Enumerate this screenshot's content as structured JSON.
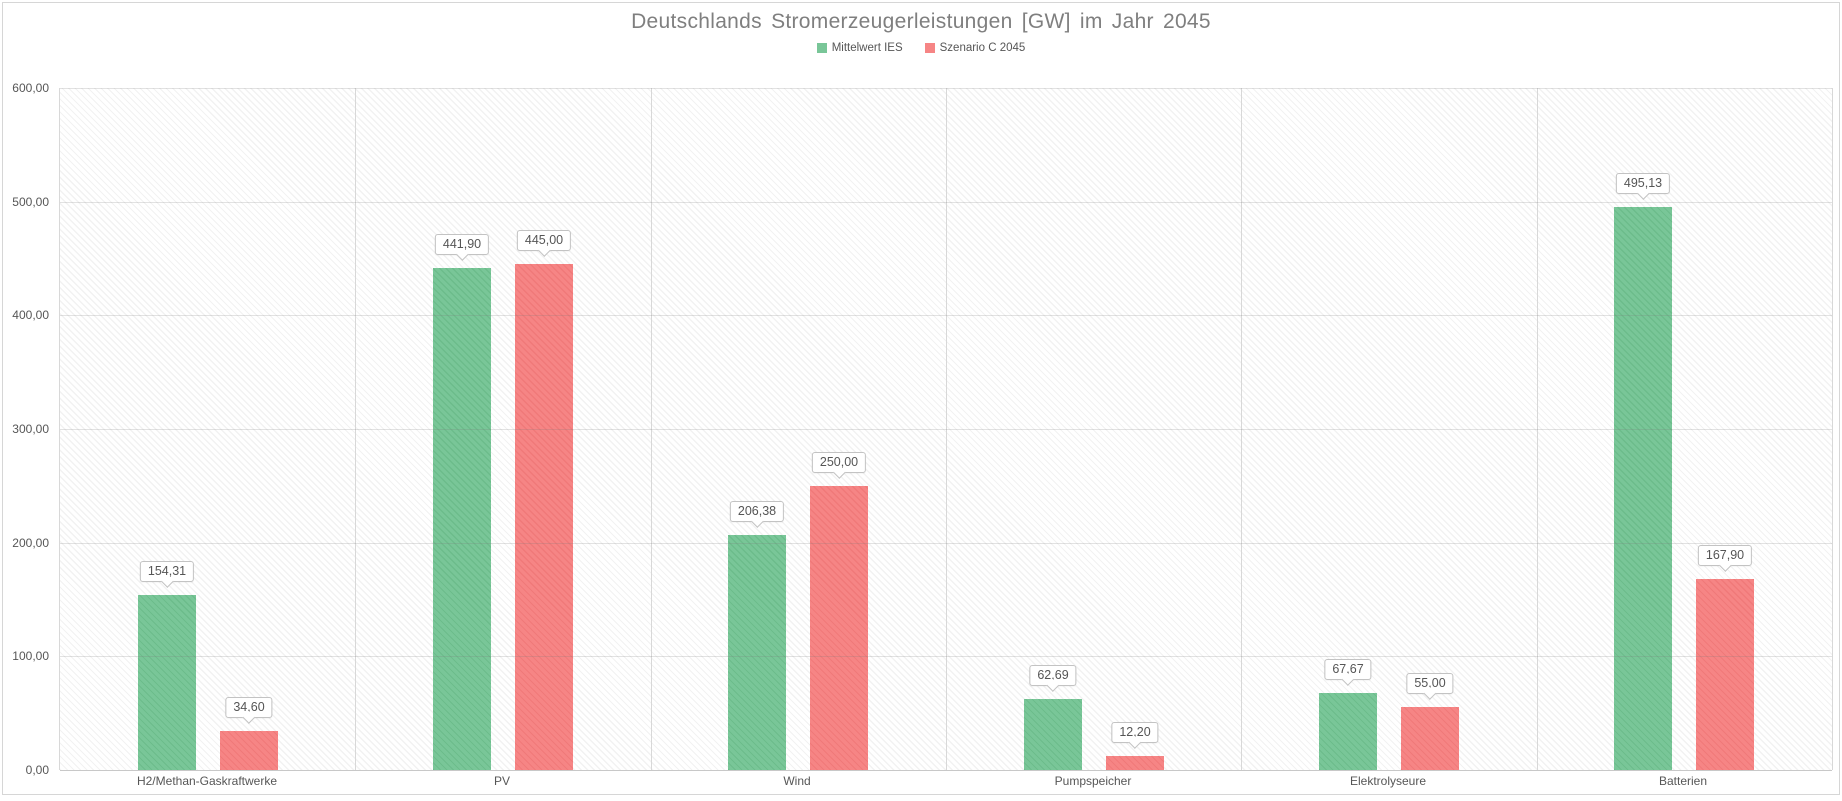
{
  "chart_data": {
    "type": "bar",
    "title": "Deutschlands Stromerzeugerleistungen [GW] im Jahr 2045",
    "categories": [
      "H2/Methan-Gaskraftwerke",
      "PV",
      "Wind",
      "Pumpspeicher",
      "Elektrolyseure",
      "Batterien"
    ],
    "series": [
      {
        "name": "Mittelwert IES",
        "color": "#79c698",
        "stripe_color": "#6cbc8b",
        "values": [
          154.31,
          441.9,
          206.38,
          62.69,
          67.67,
          495.13
        ],
        "value_labels": [
          "154,31",
          "441,90",
          "206,38",
          "62,69",
          "67,67",
          "495,13"
        ]
      },
      {
        "name": "Szenario C 2045",
        "color": "#f68585",
        "stripe_color": "#f07979",
        "values": [
          34.6,
          445.0,
          250.0,
          12.2,
          55.0,
          167.9
        ],
        "value_labels": [
          "34,60",
          "445,00",
          "250,00",
          "12,20",
          "55,00",
          "167,90"
        ]
      }
    ],
    "xlabel": "",
    "ylabel": "",
    "ylim": [
      0,
      600
    ],
    "y_tick_values": [
      600,
      500,
      400,
      300,
      200,
      100,
      0
    ],
    "y_tick_labels": [
      "600,00",
      "500,00",
      "400,00",
      "300,00",
      "200,00",
      "100,00",
      "0,00"
    ],
    "grid": true,
    "legend_position": "top",
    "background_pattern": "diagonal-hatch"
  }
}
